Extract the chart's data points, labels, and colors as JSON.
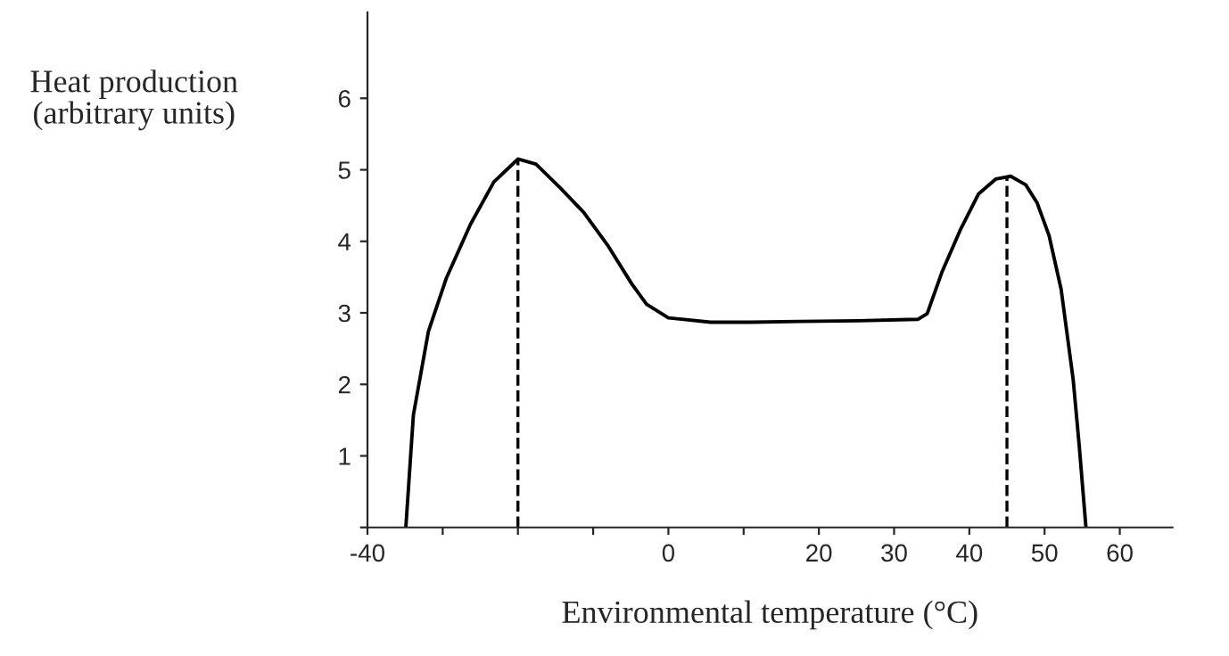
{
  "chart_data": {
    "type": "line",
    "xlabel": "Environmental temperature (°C)",
    "ylabel": "Heat production\n(arbitrary units)",
    "series": [
      {
        "color": "#000000",
        "x": [
          -34.9,
          -33.9,
          -31.9,
          -29.5,
          -26.3,
          -23.2,
          -20,
          -17.6,
          -14.4,
          -11.3,
          -8.1,
          -4.9,
          -2.9,
          0,
          5.6,
          11,
          17.4,
          25.3,
          33.2,
          34.4,
          36.4,
          38.8,
          41.2,
          43.5,
          45.5,
          47.5,
          49,
          50.6,
          52.2,
          53.8,
          54.6,
          55.5
        ],
        "values": [
          0,
          1.57,
          2.74,
          3.49,
          4.24,
          4.83,
          5.15,
          5.08,
          4.75,
          4.41,
          3.95,
          3.41,
          3.12,
          2.93,
          2.87,
          2.87,
          2.88,
          2.89,
          2.91,
          2.99,
          3.58,
          4.16,
          4.66,
          4.87,
          4.91,
          4.79,
          4.54,
          4.08,
          3.33,
          2.07,
          1.15,
          0
        ]
      }
    ],
    "ref_lines": [
      {
        "axis": "x",
        "value": -20,
        "line_style": "dashed",
        "color": "#000000"
      },
      {
        "axis": "x",
        "value": 45,
        "line_style": "dashed",
        "color": "#000000"
      }
    ],
    "xlim": [
      -40,
      67
    ],
    "ylim": [
      0,
      7.2
    ],
    "xticks": [
      -40,
      {
        "value": -30,
        "label": null
      },
      {
        "value": -20,
        "label": null
      },
      {
        "value": -10,
        "label": null
      },
      0,
      {
        "value": 10,
        "label": null
      },
      20,
      30,
      40,
      50,
      60
    ],
    "yticks": [
      {
        "value": 0,
        "label": null
      },
      1,
      2,
      3,
      4,
      5,
      6
    ],
    "grid": false,
    "legend": false,
    "marker": "none",
    "line_style": "solid"
  }
}
